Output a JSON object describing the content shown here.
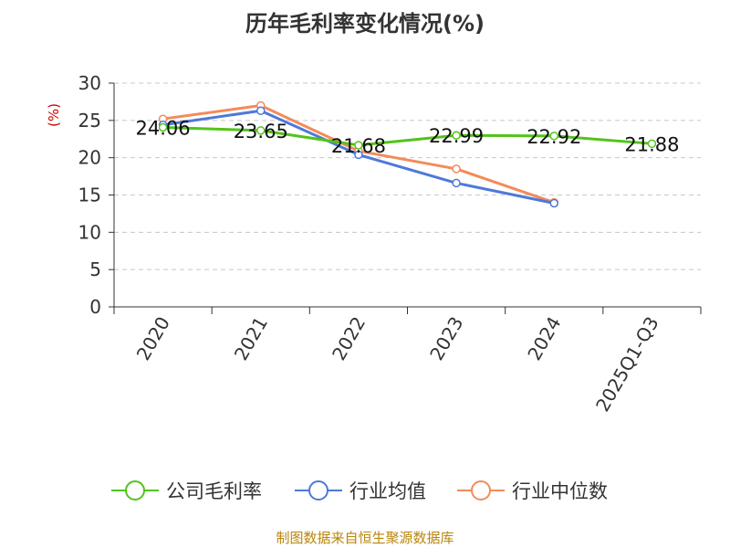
{
  "title": "历年毛利率变化情况(%)",
  "footer": "制图数据来自恒生聚源数据库",
  "chart_data": {
    "type": "line",
    "title": "历年毛利率变化情况(%)",
    "ylabel": "(%)",
    "xlabel": "",
    "ylim": [
      0,
      30
    ],
    "yticks": [
      0,
      5,
      10,
      15,
      20,
      25,
      30
    ],
    "grid": true,
    "legend": "bottom",
    "categories": [
      "2020",
      "2021",
      "2022",
      "2023",
      "2024",
      "2025Q1-Q3"
    ],
    "series": [
      {
        "name": "公司毛利率",
        "color": "#52c41a",
        "values": [
          24.06,
          23.65,
          21.68,
          22.99,
          22.92,
          21.88
        ],
        "labels": [
          "24.06",
          "23.65",
          "21.68",
          "22.99",
          "22.92",
          "21.88"
        ]
      },
      {
        "name": "行业均值",
        "color": "#4e79d9",
        "values": [
          24.4,
          26.3,
          20.4,
          16.6,
          13.9,
          null
        ]
      },
      {
        "name": "行业中位数",
        "color": "#f38b5a",
        "values": [
          25.2,
          27.0,
          20.9,
          18.5,
          14.0,
          null
        ]
      }
    ]
  }
}
